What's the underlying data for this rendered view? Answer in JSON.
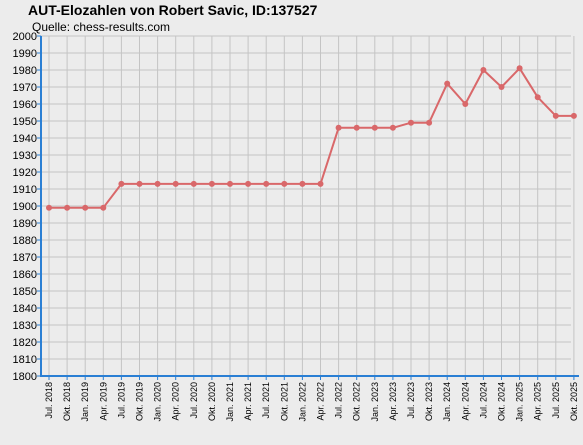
{
  "chart_data": {
    "type": "line",
    "title": "AUT-Elozahlen von Robert Savic, ID:137527",
    "subtitle": "Quelle: chess-results.com",
    "xlabel": "",
    "ylabel": "",
    "ylim": [
      1800,
      2000
    ],
    "ystep": 10,
    "grid": true,
    "line_color": "#d9686a",
    "categories": [
      "Jul. 2018",
      "Okt. 2018",
      "Jan. 2019",
      "Apr. 2019",
      "Jul. 2019",
      "Okt. 2019",
      "Jan. 2020",
      "Apr. 2020",
      "Jul. 2020",
      "Okt. 2020",
      "Jan. 2021",
      "Apr. 2021",
      "Jul. 2021",
      "Okt. 2021",
      "Jan. 2022",
      "Apr. 2022",
      "Jul. 2022",
      "Okt. 2022",
      "Jan. 2023",
      "Apr. 2023",
      "Jul. 2023",
      "Okt. 2023",
      "Jan. 2024",
      "Apr. 2024",
      "Jul. 2024",
      "Okt. 2024",
      "Jan. 2025",
      "Apr. 2025",
      "Jul. 2025",
      "Okt. 2025"
    ],
    "values": [
      1899,
      1899,
      1899,
      1899,
      1913,
      1913,
      1913,
      1913,
      1913,
      1913,
      1913,
      1913,
      1913,
      1913,
      1913,
      1913,
      1946,
      1946,
      1946,
      1946,
      1949,
      1949,
      1972,
      1960,
      1980,
      1970,
      1981,
      1964,
      1953,
      1953
    ]
  }
}
